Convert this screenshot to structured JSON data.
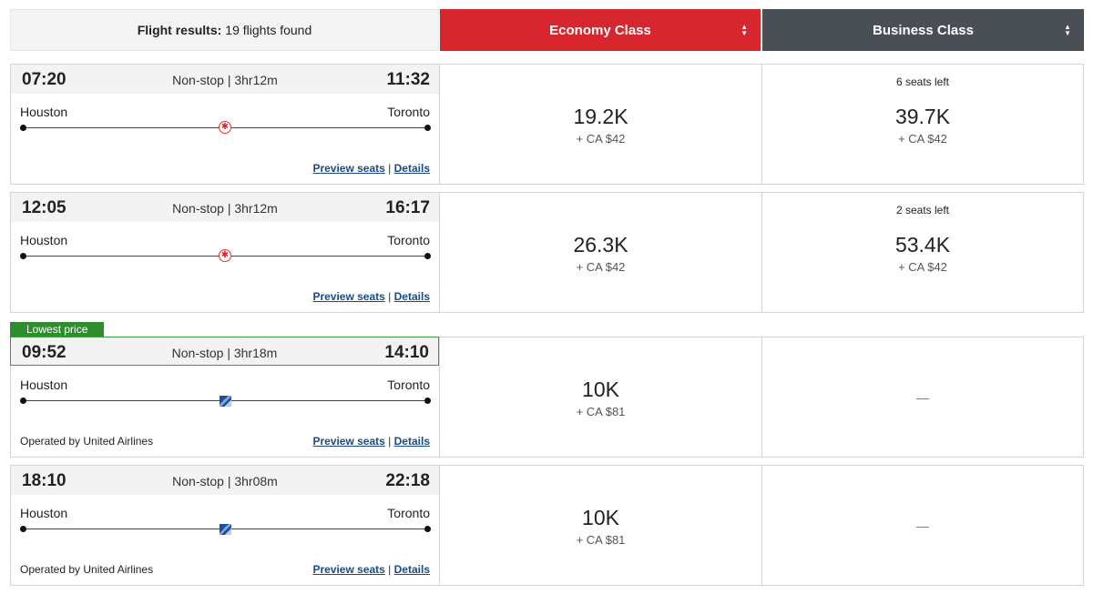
{
  "header": {
    "results_label": "Flight results:",
    "results_count": "19 flights found",
    "economy": "Economy Class",
    "business": "Business Class"
  },
  "links": {
    "preview": "Preview seats",
    "sep": "|",
    "details": "Details"
  },
  "badge": "Lowest price",
  "flights": [
    {
      "dep": "07:20",
      "arr": "11:32",
      "dur": "Non-stop | 3hr12m",
      "from": "Houston",
      "to": "Toronto",
      "airline": "air-canada",
      "operated": "",
      "eco_pts": "19.2K",
      "eco_tax": "+ CA $42",
      "bus_seats": "6 seats left",
      "bus_pts": "39.7K",
      "bus_tax": "+ CA $42"
    },
    {
      "dep": "12:05",
      "arr": "16:17",
      "dur": "Non-stop | 3hr12m",
      "from": "Houston",
      "to": "Toronto",
      "airline": "air-canada",
      "operated": "",
      "eco_pts": "26.3K",
      "eco_tax": "+ CA $42",
      "bus_seats": "2 seats left",
      "bus_pts": "53.4K",
      "bus_tax": "+ CA $42"
    },
    {
      "dep": "09:52",
      "arr": "14:10",
      "dur": "Non-stop | 3hr18m",
      "from": "Houston",
      "to": "Toronto",
      "airline": "united",
      "operated": "Operated by United Airlines",
      "eco_pts": "10K",
      "eco_tax": "+ CA $81",
      "bus_dash": "—"
    },
    {
      "dep": "18:10",
      "arr": "22:18",
      "dur": "Non-stop | 3hr08m",
      "from": "Houston",
      "to": "Toronto",
      "airline": "united",
      "operated": "Operated by United Airlines",
      "eco_pts": "10K",
      "eco_tax": "+ CA $81",
      "bus_dash": "—"
    }
  ]
}
